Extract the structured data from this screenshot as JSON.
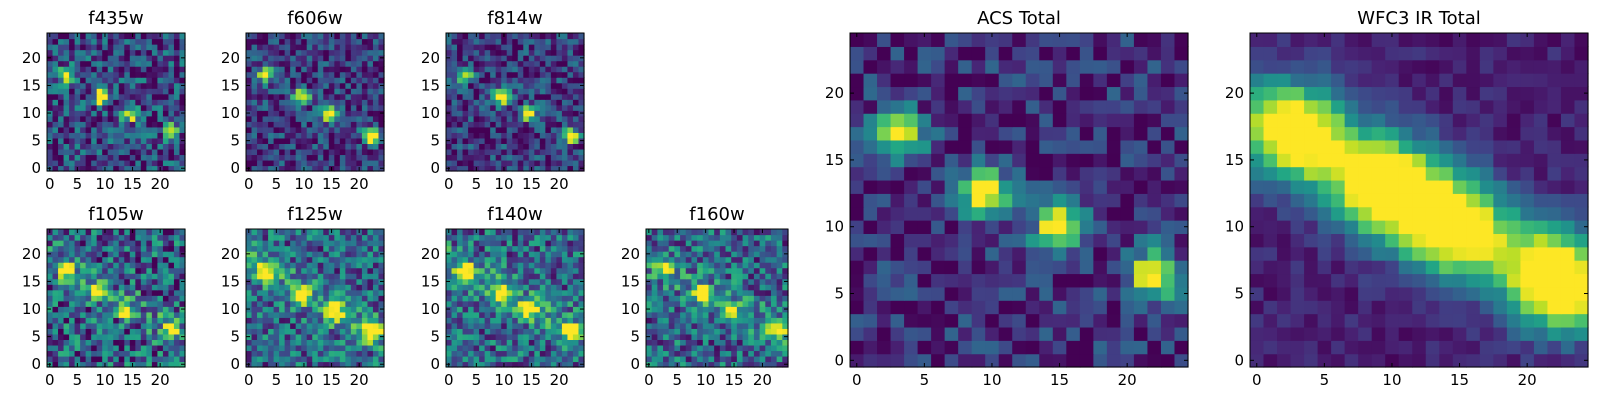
{
  "chart_data": [
    {
      "type": "heatmap",
      "title": "f435w",
      "xticks": [
        "0",
        "5",
        "10",
        "15",
        "20"
      ],
      "yticks": [
        "0",
        "5",
        "10",
        "15",
        "20"
      ],
      "xlim": [
        0,
        25
      ],
      "ylim": [
        0,
        25
      ],
      "colormap": "viridis",
      "peaks": [
        {
          "x": 3.5,
          "y": 17.5,
          "value": 0.8
        },
        {
          "x": 10,
          "y": 13.5,
          "value": 1.0
        },
        {
          "x": 15,
          "y": 10.5,
          "value": 0.95
        },
        {
          "x": 22.5,
          "y": 7,
          "value": 0.9
        }
      ]
    },
    {
      "type": "heatmap",
      "title": "f606w",
      "xticks": [
        "0",
        "5",
        "10",
        "15",
        "20"
      ],
      "yticks": [
        "0",
        "5",
        "10",
        "15",
        "20"
      ],
      "xlim": [
        0,
        25
      ],
      "ylim": [
        0,
        25
      ],
      "colormap": "viridis",
      "peaks": [
        {
          "x": 3.5,
          "y": 17.5,
          "value": 0.85
        },
        {
          "x": 10,
          "y": 13.5,
          "value": 1.0
        },
        {
          "x": 15,
          "y": 10.5,
          "value": 0.95
        },
        {
          "x": 22.5,
          "y": 6.5,
          "value": 1.0
        }
      ]
    },
    {
      "type": "heatmap",
      "title": "f814w",
      "xticks": [
        "0",
        "5",
        "10",
        "15",
        "20"
      ],
      "yticks": [
        "0",
        "5",
        "10",
        "15",
        "20"
      ],
      "xlim": [
        0,
        25
      ],
      "ylim": [
        0,
        25
      ],
      "colormap": "viridis",
      "peaks": [
        {
          "x": 3.5,
          "y": 17.5,
          "value": 0.85
        },
        {
          "x": 10,
          "y": 13.5,
          "value": 1.0
        },
        {
          "x": 15,
          "y": 10.5,
          "value": 0.95
        },
        {
          "x": 22.5,
          "y": 6.5,
          "value": 1.0
        }
      ]
    },
    {
      "type": "heatmap",
      "title": "f105w",
      "xticks": [
        "0",
        "5",
        "10",
        "15",
        "20"
      ],
      "yticks": [
        "0",
        "5",
        "10",
        "15",
        "20"
      ],
      "xlim": [
        0,
        25
      ],
      "ylim": [
        0,
        25
      ],
      "colormap": "viridis",
      "peaks": [
        {
          "x": 3.5,
          "y": 17.5,
          "value": 0.9
        },
        {
          "x": 9,
          "y": 13.5,
          "value": 0.95
        },
        {
          "x": 14,
          "y": 10.5,
          "value": 0.9
        },
        {
          "x": 22.5,
          "y": 7,
          "value": 0.85
        }
      ]
    },
    {
      "type": "heatmap",
      "title": "f125w",
      "xticks": [
        "0",
        "5",
        "10",
        "15",
        "20"
      ],
      "yticks": [
        "0",
        "5",
        "10",
        "15",
        "20"
      ],
      "xlim": [
        0,
        25
      ],
      "ylim": [
        0,
        25
      ],
      "colormap": "viridis",
      "peaks": [
        {
          "x": 3.5,
          "y": 17.5,
          "value": 0.85
        },
        {
          "x": 10,
          "y": 13,
          "value": 0.95
        },
        {
          "x": 16,
          "y": 10,
          "value": 0.9
        },
        {
          "x": 22.5,
          "y": 6.5,
          "value": 0.95
        }
      ]
    },
    {
      "type": "heatmap",
      "title": "f140w",
      "xticks": [
        "0",
        "5",
        "10",
        "15",
        "20"
      ],
      "yticks": [
        "0",
        "5",
        "10",
        "15",
        "20"
      ],
      "xlim": [
        0,
        25
      ],
      "ylim": [
        0,
        25
      ],
      "colormap": "viridis",
      "peaks": [
        {
          "x": 3.5,
          "y": 17.5,
          "value": 0.85
        },
        {
          "x": 10,
          "y": 13.5,
          "value": 1.0
        },
        {
          "x": 15,
          "y": 10.5,
          "value": 0.9
        },
        {
          "x": 22.5,
          "y": 6.5,
          "value": 1.0
        }
      ]
    },
    {
      "type": "heatmap",
      "title": "f160w",
      "xticks": [
        "0",
        "5",
        "10",
        "15",
        "20"
      ],
      "yticks": [
        "0",
        "5",
        "10",
        "15",
        "20"
      ],
      "xlim": [
        0,
        25
      ],
      "ylim": [
        0,
        25
      ],
      "colormap": "viridis",
      "peaks": [
        {
          "x": 3.5,
          "y": 18,
          "value": 0.9
        },
        {
          "x": 10,
          "y": 13.5,
          "value": 1.0
        },
        {
          "x": 15,
          "y": 10.5,
          "value": 0.9
        },
        {
          "x": 23,
          "y": 7,
          "value": 1.0
        }
      ]
    },
    {
      "type": "heatmap",
      "title": "ACS Total",
      "xticks": [
        "0",
        "5",
        "10",
        "15",
        "20"
      ],
      "yticks": [
        "0",
        "5",
        "10",
        "15",
        "20"
      ],
      "xlim": [
        0,
        25
      ],
      "ylim": [
        0,
        25
      ],
      "colormap": "viridis",
      "peaks": [
        {
          "x": 3.5,
          "y": 17.5,
          "value": 0.85
        },
        {
          "x": 10,
          "y": 13,
          "value": 1.0
        },
        {
          "x": 15.5,
          "y": 10.5,
          "value": 0.95
        },
        {
          "x": 22.5,
          "y": 7,
          "value": 1.0
        }
      ]
    },
    {
      "type": "heatmap",
      "title": "WFC3 IR Total",
      "xticks": [
        "0",
        "5",
        "10",
        "15",
        "20"
      ],
      "yticks": [
        "0",
        "5",
        "10",
        "15",
        "20"
      ],
      "xlim": [
        0,
        25
      ],
      "ylim": [
        0,
        25
      ],
      "colormap": "viridis",
      "peaks": [
        {
          "x": 3.5,
          "y": 17.5,
          "value": 0.9
        },
        {
          "x": 10,
          "y": 13.5,
          "value": 1.0
        },
        {
          "x": 15,
          "y": 10.5,
          "value": 0.95
        },
        {
          "x": 22.5,
          "y": 6.5,
          "value": 1.0
        }
      ]
    }
  ]
}
